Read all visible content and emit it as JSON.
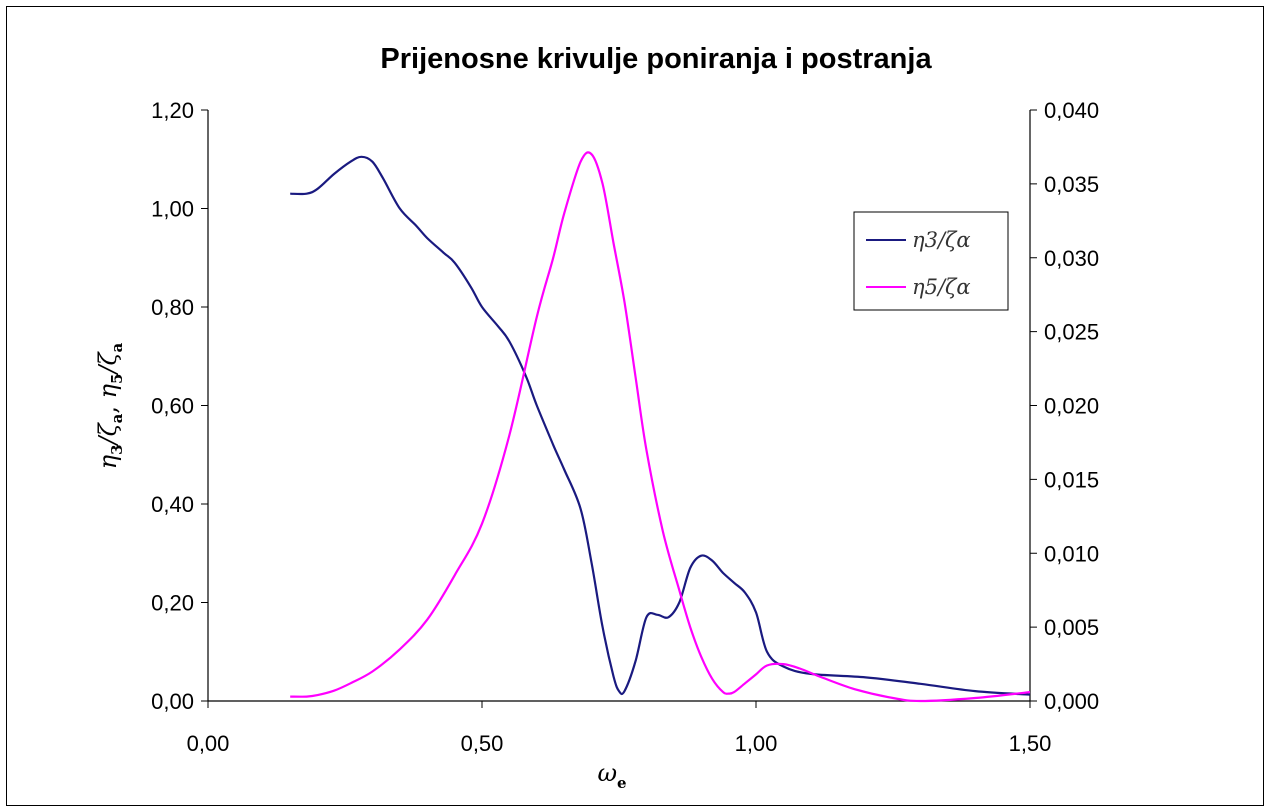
{
  "chart_data": {
    "type": "line",
    "title": "Prijenosne krivulje poniranja i postranja",
    "xlabel": "ωe",
    "xlabel_main": "ω",
    "xlabel_sub": "e",
    "ylabel": "η3/ζa, η5/ζa",
    "ylabel_parts": {
      "a": "η",
      "a_sub": "3",
      "b": "/ζ",
      "b_sub": "a",
      "sep": ", ",
      "c": "η",
      "c_sub": "5",
      "d": "/ζ",
      "d_sub": "a"
    },
    "xlim": [
      0,
      1.5
    ],
    "ylim_left": [
      0,
      1.2
    ],
    "ylim_right": [
      0,
      0.04
    ],
    "x_ticks": [
      "0,00",
      "0,50",
      "1,00",
      "1,50"
    ],
    "y_ticks_left": [
      "0,00",
      "0,20",
      "0,40",
      "0,60",
      "0,80",
      "1,00",
      "1,20"
    ],
    "y_ticks_right": [
      "0,000",
      "0,005",
      "0,010",
      "0,015",
      "0,020",
      "0,025",
      "0,030",
      "0,035",
      "0,040"
    ],
    "grid": false,
    "legend_position": "right",
    "series": [
      {
        "name": "η3/ζα",
        "axis": "left",
        "color": "#1a1a80",
        "x": [
          0.15,
          0.18,
          0.2,
          0.23,
          0.26,
          0.28,
          0.3,
          0.32,
          0.35,
          0.38,
          0.4,
          0.43,
          0.45,
          0.48,
          0.5,
          0.53,
          0.55,
          0.58,
          0.6,
          0.63,
          0.65,
          0.68,
          0.7,
          0.72,
          0.74,
          0.75,
          0.76,
          0.78,
          0.8,
          0.82,
          0.84,
          0.86,
          0.88,
          0.9,
          0.92,
          0.94,
          0.96,
          0.98,
          1.0,
          1.02,
          1.05,
          1.1,
          1.2,
          1.3,
          1.4,
          1.5
        ],
        "y": [
          1.03,
          1.03,
          1.04,
          1.07,
          1.095,
          1.105,
          1.095,
          1.06,
          1.0,
          0.965,
          0.94,
          0.91,
          0.89,
          0.84,
          0.8,
          0.76,
          0.73,
          0.66,
          0.6,
          0.52,
          0.47,
          0.39,
          0.28,
          0.15,
          0.05,
          0.02,
          0.02,
          0.08,
          0.17,
          0.175,
          0.17,
          0.2,
          0.27,
          0.295,
          0.285,
          0.26,
          0.24,
          0.22,
          0.18,
          0.1,
          0.07,
          0.055,
          0.048,
          0.035,
          0.02,
          0.013
        ]
      },
      {
        "name": "η5/ζα",
        "axis": "right",
        "color": "#ff00ff",
        "x": [
          0.15,
          0.18,
          0.2,
          0.23,
          0.26,
          0.3,
          0.35,
          0.4,
          0.45,
          0.5,
          0.55,
          0.6,
          0.63,
          0.65,
          0.68,
          0.7,
          0.72,
          0.74,
          0.76,
          0.78,
          0.8,
          0.83,
          0.86,
          0.88,
          0.9,
          0.92,
          0.94,
          0.95,
          0.96,
          0.98,
          1.0,
          1.02,
          1.05,
          1.08,
          1.12,
          1.18,
          1.25,
          1.3,
          1.4,
          1.5
        ],
        "y": [
          0.0003,
          0.0003,
          0.0004,
          0.0007,
          0.0012,
          0.002,
          0.0035,
          0.0055,
          0.0085,
          0.012,
          0.018,
          0.026,
          0.03,
          0.033,
          0.0365,
          0.037,
          0.035,
          0.031,
          0.027,
          0.022,
          0.017,
          0.0115,
          0.0075,
          0.005,
          0.003,
          0.0015,
          0.0006,
          0.0005,
          0.0006,
          0.0012,
          0.0018,
          0.0024,
          0.0025,
          0.0022,
          0.0016,
          0.0008,
          0.0002,
          0.0,
          0.0002,
          0.0006
        ]
      }
    ]
  }
}
